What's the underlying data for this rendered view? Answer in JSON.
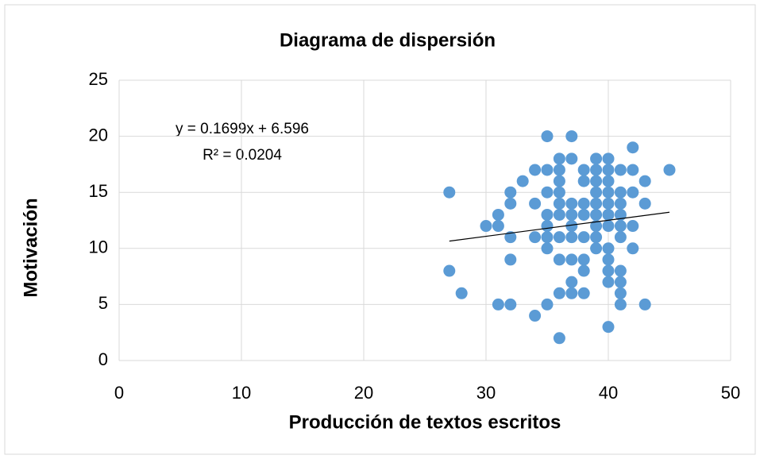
{
  "chart_data": {
    "type": "scatter",
    "title": "Diagrama de dispersión",
    "x_label": "Producción de textos escritos",
    "y_label": "Motivación",
    "trendline": {
      "equation": "y = 0.1699x + 6.596",
      "r2": "R² = 0.0204"
    },
    "color": "#5b9bd5",
    "grid": true,
    "xlim": [
      0,
      50
    ],
    "xticks": [
      0,
      10,
      20,
      30,
      40,
      50
    ],
    "ylim": [
      0,
      25
    ],
    "yticks": [
      0,
      5,
      10,
      15,
      20,
      25
    ],
    "x": [
      27,
      27,
      28,
      30,
      31,
      31,
      31,
      32,
      32,
      32,
      32,
      32,
      33,
      34,
      34,
      34,
      34,
      35,
      35,
      35,
      35,
      35,
      35,
      35,
      35,
      36,
      36,
      36,
      36,
      36,
      36,
      36,
      36,
      36,
      36,
      37,
      37,
      37,
      37,
      37,
      37,
      37,
      37,
      37,
      38,
      38,
      38,
      38,
      38,
      38,
      38,
      38,
      39,
      39,
      39,
      39,
      39,
      39,
      39,
      39,
      39,
      40,
      40,
      40,
      40,
      40,
      40,
      40,
      40,
      40,
      40,
      40,
      40,
      41,
      41,
      41,
      41,
      41,
      41,
      41,
      41,
      41,
      41,
      42,
      42,
      42,
      42,
      42,
      43,
      43,
      43,
      45
    ],
    "y": [
      15,
      8,
      6,
      12,
      13,
      12,
      5,
      15,
      14,
      11,
      9,
      5,
      16,
      17,
      14,
      11,
      4,
      20,
      17,
      15,
      13,
      12,
      11,
      10,
      5,
      18,
      17,
      16,
      15,
      14,
      13,
      11,
      9,
      6,
      2,
      20,
      18,
      14,
      13,
      12,
      11,
      9,
      7,
      6,
      17,
      16,
      14,
      13,
      11,
      9,
      8,
      6,
      18,
      17,
      16,
      15,
      14,
      13,
      12,
      11,
      10,
      18,
      17,
      16,
      15,
      14,
      13,
      12,
      10,
      9,
      8,
      7,
      3,
      17,
      15,
      14,
      13,
      12,
      11,
      8,
      7,
      6,
      5,
      19,
      17,
      15,
      12,
      10,
      16,
      14,
      5,
      17
    ]
  }
}
